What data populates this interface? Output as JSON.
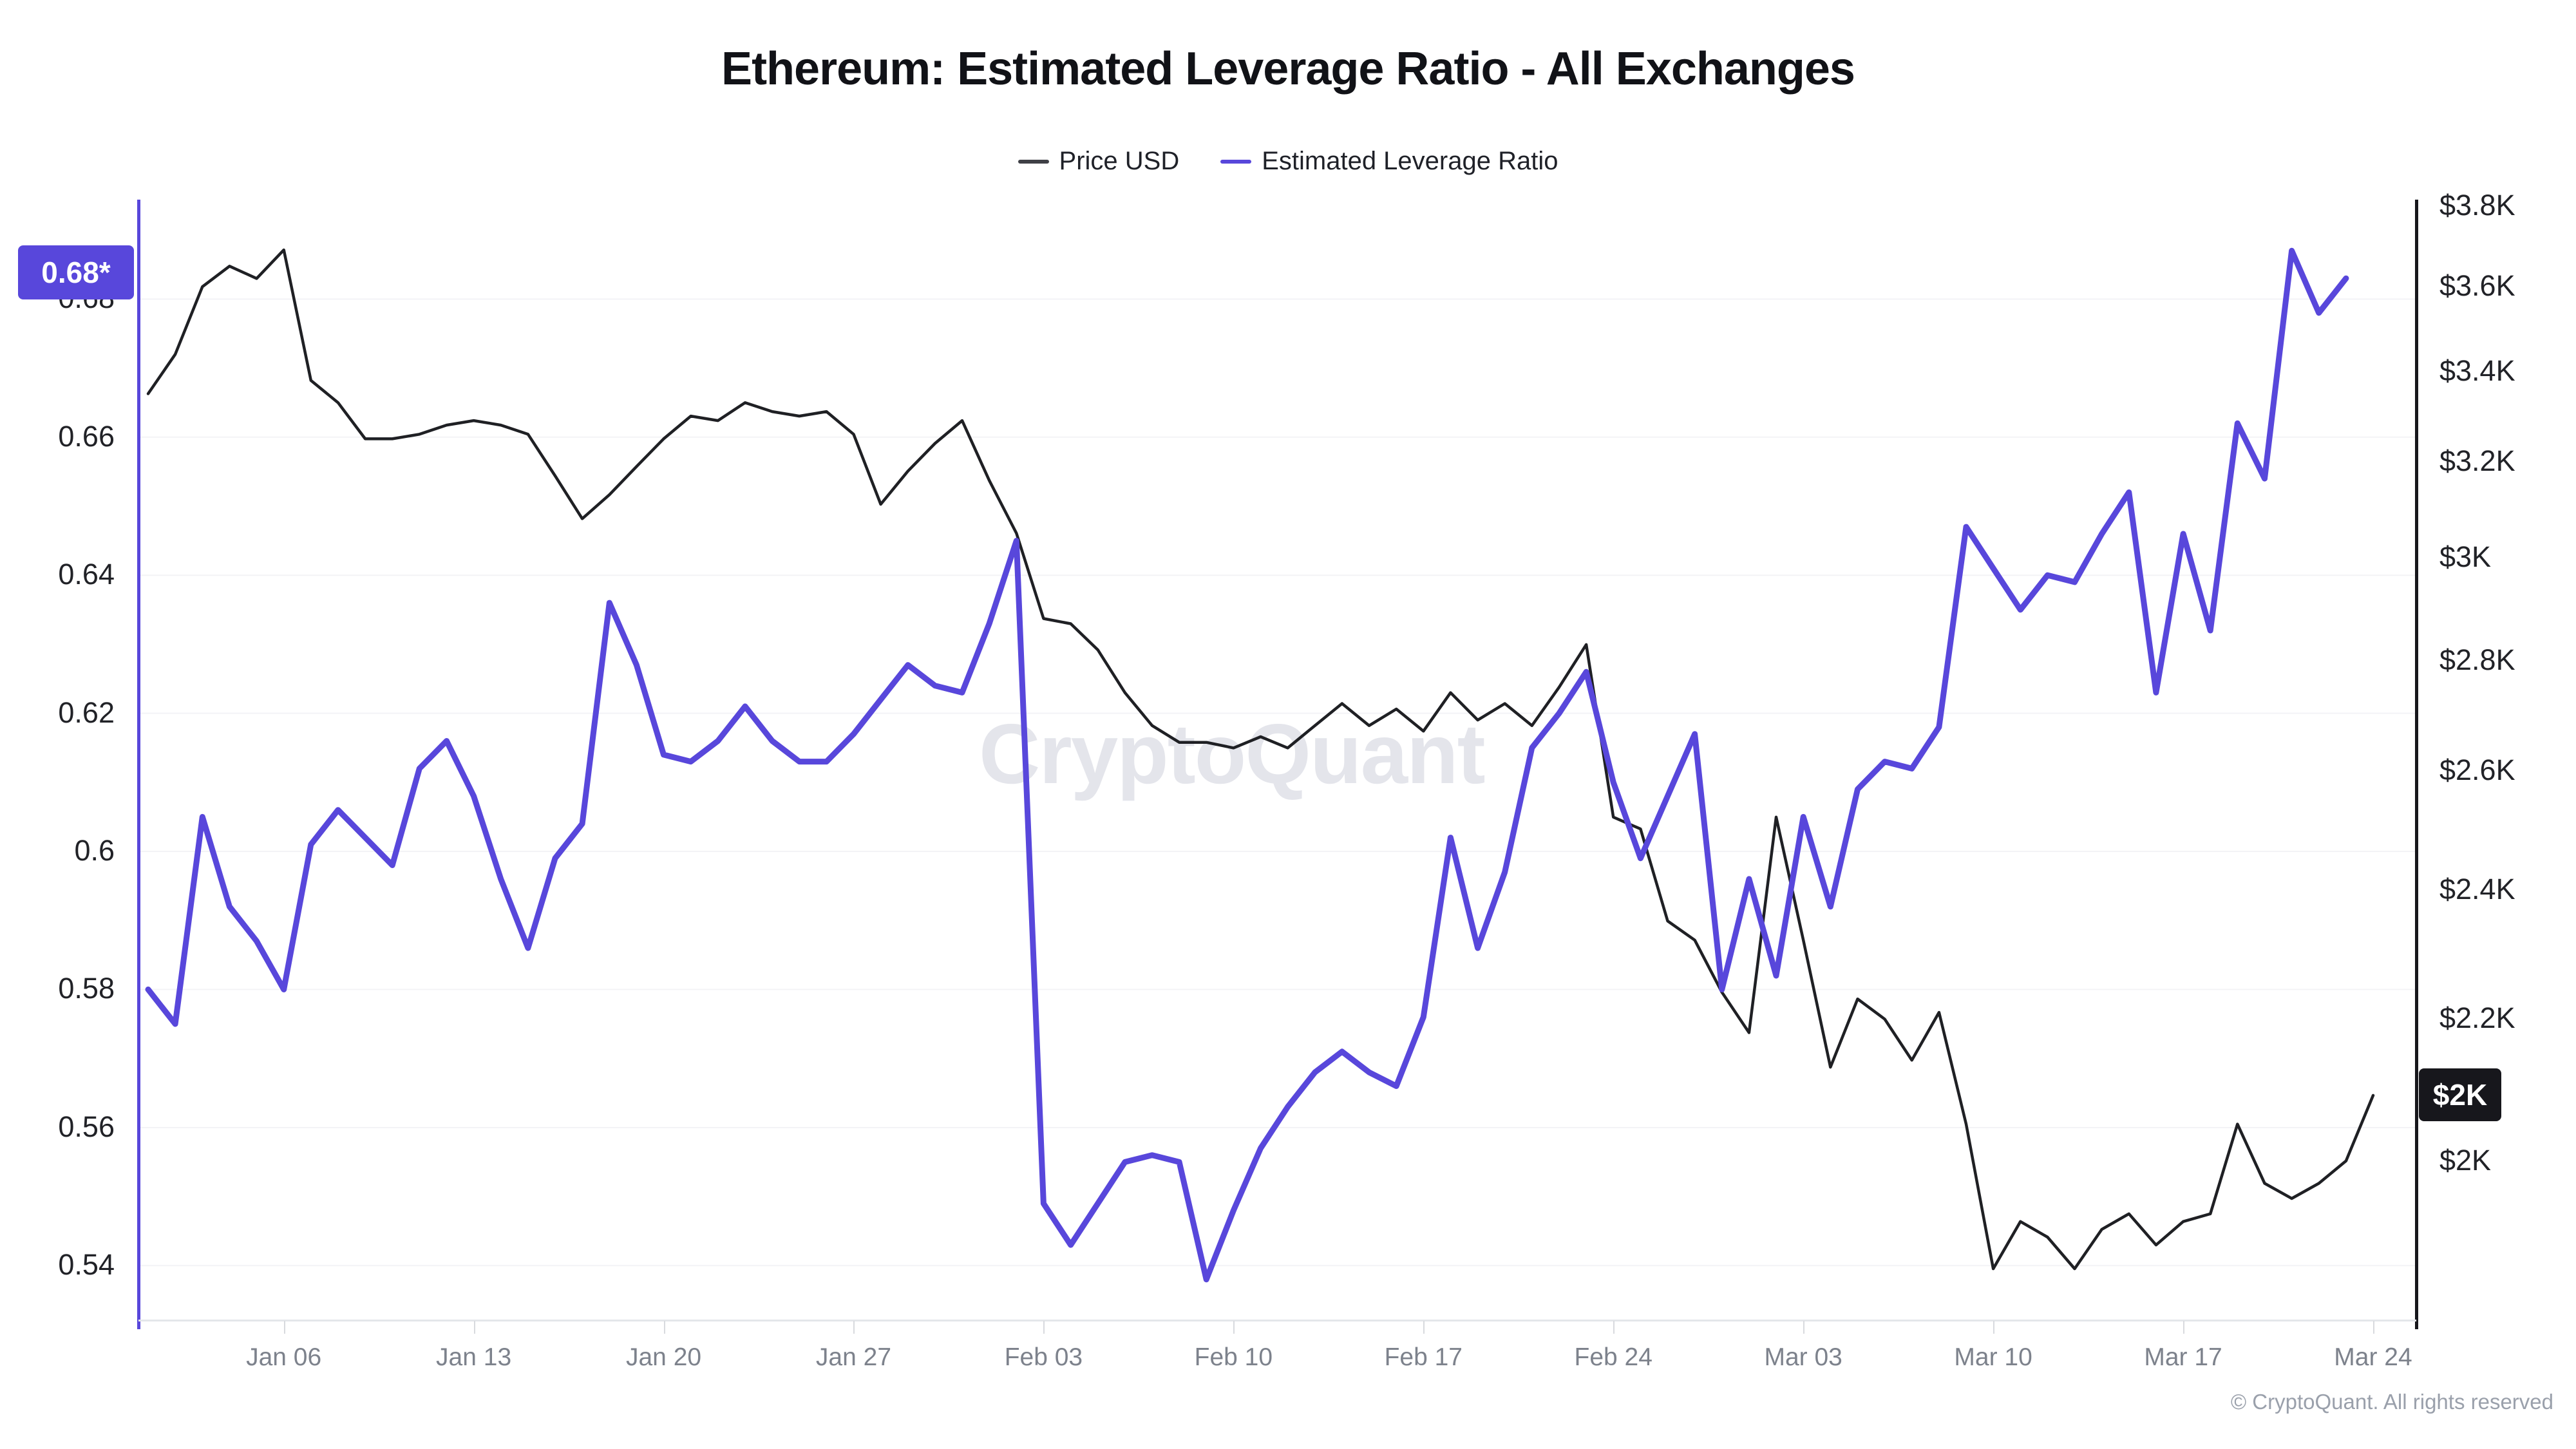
{
  "header": {
    "title": "Ethereum: Estimated Leverage Ratio - All Exchanges"
  },
  "legend": [
    {
      "label": "Price USD",
      "color": "#3f4046"
    },
    {
      "label": "Estimated Leverage Ratio",
      "color": "#5847db"
    }
  ],
  "watermark": "CryptoQuant",
  "footer": "© CryptoQuant. All rights reserved",
  "badges": {
    "left": {
      "text": "0.68*",
      "value": 0.684,
      "color": "#5847db"
    },
    "right": {
      "text": "$2K",
      "value_k": 2.09,
      "color": "#17171c"
    }
  },
  "axes": {
    "left": {
      "title": "Estimated Leverage Ratio",
      "ticks": [
        {
          "label": "0.68",
          "value": 0.68
        },
        {
          "label": "0.66",
          "value": 0.66
        },
        {
          "label": "0.64",
          "value": 0.64
        },
        {
          "label": "0.62",
          "value": 0.62
        },
        {
          "label": "0.6",
          "value": 0.6
        },
        {
          "label": "0.58",
          "value": 0.58
        },
        {
          "label": "0.56",
          "value": 0.56
        },
        {
          "label": "0.54",
          "value": 0.54
        }
      ]
    },
    "right": {
      "title": "Price USD",
      "scale": "log",
      "ticks": [
        {
          "label": "$3.8K",
          "value": 3.8
        },
        {
          "label": "$3.6K",
          "value": 3.6
        },
        {
          "label": "$3.4K",
          "value": 3.4
        },
        {
          "label": "$3.2K",
          "value": 3.2
        },
        {
          "label": "$3K",
          "value": 3.0
        },
        {
          "label": "$2.8K",
          "value": 2.8
        },
        {
          "label": "$2.6K",
          "value": 2.6
        },
        {
          "label": "$2.4K",
          "value": 2.4
        },
        {
          "label": "$2.2K",
          "value": 2.2
        },
        {
          "label": "$2K",
          "value": 2.0
        }
      ]
    },
    "x": {
      "ticks": [
        {
          "label": "Jan 06",
          "day": 5
        },
        {
          "label": "Jan 13",
          "day": 12
        },
        {
          "label": "Jan 20",
          "day": 19
        },
        {
          "label": "Jan 27",
          "day": 26
        },
        {
          "label": "Feb 03",
          "day": 33
        },
        {
          "label": "Feb 10",
          "day": 40
        },
        {
          "label": "Feb 17",
          "day": 47
        },
        {
          "label": "Feb 24",
          "day": 54
        },
        {
          "label": "Mar 03",
          "day": 61
        },
        {
          "label": "Mar 10",
          "day": 68
        },
        {
          "label": "Mar 17",
          "day": 75
        },
        {
          "label": "Mar 24",
          "day": 82
        }
      ]
    }
  },
  "chart_data": {
    "type": "line",
    "title": "Ethereum: Estimated Leverage Ratio - All Exchanges",
    "x_start": "Jan 01",
    "x_end": "Mar 24",
    "cadence": "daily",
    "num_days": 83,
    "legend_position": "top",
    "grid": "horizontal-only",
    "ylim_left": [
      0.532,
      0.6944
    ],
    "ylim_right_thousands_usd": [
      1.796,
      3.817
    ],
    "right_axis_scale": "log",
    "series": [
      {
        "name": "Price USD",
        "axis": "right",
        "unit": "thousand USD",
        "color": "#1f2024",
        "values": [
          3.35,
          3.44,
          3.6,
          3.65,
          3.62,
          3.69,
          3.38,
          3.33,
          3.25,
          3.25,
          3.26,
          3.28,
          3.29,
          3.28,
          3.26,
          3.17,
          3.08,
          3.13,
          3.19,
          3.25,
          3.3,
          3.29,
          3.33,
          3.31,
          3.3,
          3.31,
          3.26,
          3.11,
          3.18,
          3.24,
          3.29,
          3.16,
          3.05,
          2.88,
          2.87,
          2.82,
          2.74,
          2.68,
          2.65,
          2.65,
          2.64,
          2.66,
          2.64,
          2.68,
          2.72,
          2.68,
          2.71,
          2.67,
          2.74,
          2.69,
          2.72,
          2.68,
          2.75,
          2.83,
          2.52,
          2.5,
          2.35,
          2.32,
          2.24,
          2.18,
          2.52,
          2.32,
          2.13,
          2.23,
          2.2,
          2.14,
          2.21,
          2.05,
          1.86,
          1.92,
          1.9,
          1.86,
          1.91,
          1.93,
          1.89,
          1.92,
          1.93,
          2.05,
          1.97,
          1.95,
          1.97,
          2.0,
          2.09
        ]
      },
      {
        "name": "Estimated Leverage Ratio",
        "axis": "left",
        "unit": "ratio",
        "color": "#5847db",
        "values": [
          0.58,
          0.575,
          0.605,
          0.592,
          0.587,
          0.58,
          0.601,
          0.606,
          0.602,
          0.598,
          0.612,
          0.616,
          0.608,
          0.596,
          0.586,
          0.599,
          0.604,
          0.636,
          0.627,
          0.614,
          0.613,
          0.616,
          0.621,
          0.616,
          0.613,
          0.613,
          0.617,
          0.622,
          0.627,
          0.624,
          0.623,
          0.633,
          0.645,
          0.549,
          0.543,
          0.549,
          0.555,
          0.556,
          0.555,
          0.538,
          0.548,
          0.557,
          0.563,
          0.568,
          0.571,
          0.568,
          0.566,
          0.576,
          0.602,
          0.586,
          0.597,
          0.615,
          0.62,
          0.626,
          0.61,
          0.599,
          0.608,
          0.617,
          0.58,
          0.596,
          0.582,
          0.605,
          0.592,
          0.609,
          0.613,
          0.612,
          0.618,
          0.647,
          0.641,
          0.635,
          0.64,
          0.639,
          0.646,
          0.652,
          0.623,
          0.646,
          0.632,
          0.662,
          0.654,
          0.687,
          0.678,
          0.683,
          null
        ]
      }
    ]
  }
}
